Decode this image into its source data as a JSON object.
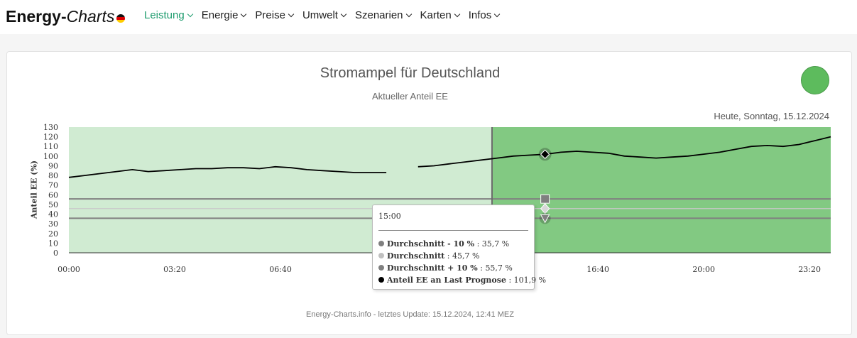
{
  "navbar": {
    "brand_bold": "Energy-",
    "brand_italic": "Charts",
    "menu": [
      {
        "label": "Leistung",
        "active": true
      },
      {
        "label": "Energie",
        "active": false
      },
      {
        "label": "Preise",
        "active": false
      },
      {
        "label": "Umwelt",
        "active": false
      },
      {
        "label": "Szenarien",
        "active": false
      },
      {
        "label": "Karten",
        "active": false
      },
      {
        "label": "Infos",
        "active": false
      }
    ],
    "flag_icon": "german-flag-icon",
    "chevron_icon": "chevron-down-icon"
  },
  "status_light": {
    "color": "#5dbb5d",
    "state": "green"
  },
  "date_label": "Heute, Sonntag, 15.12.2024",
  "footer": "Energy-Charts.info - letztes Update: 15.12.2024, 12:41 MEZ",
  "tooltip": {
    "time": "15:00",
    "rows": [
      {
        "name": "Durchschnitt - 10 %",
        "value": "35,7 %",
        "color": "#808080"
      },
      {
        "name": "Durchschnitt",
        "value": "45,7 %",
        "color": "#c0c0c0"
      },
      {
        "name": "Durchschnitt + 10 %",
        "value": "55,7 %",
        "color": "#808080"
      },
      {
        "name": "Anteil EE an Last Prognose",
        "value": "101,9 %",
        "color": "#000000"
      }
    ]
  },
  "chart_data": {
    "type": "line",
    "title": "Stromampel für Deutschland",
    "subtitle": "Aktueller Anteil EE",
    "ylabel": "Anteil EE (%)",
    "xlabel": "",
    "ylim": [
      0,
      130
    ],
    "xlim_hours": [
      0,
      24
    ],
    "x_ticks": [
      "00:00",
      "03:20",
      "06:40",
      "16:40",
      "20:00",
      "23:20"
    ],
    "x_tick_hours": [
      0,
      3.333,
      6.667,
      16.667,
      20,
      23.333
    ],
    "y_ticks": [
      0,
      10,
      20,
      30,
      40,
      50,
      60,
      70,
      80,
      90,
      100,
      110,
      120,
      130
    ],
    "background_bands": [
      {
        "from_hour": 0,
        "to_hour": 13.33,
        "color": "#d0ebd2"
      },
      {
        "from_hour": 13.33,
        "to_hour": 24,
        "color": "#82c982"
      }
    ],
    "reference_lines": [
      {
        "name": "Durchschnitt - 10 %",
        "value": 35.7,
        "color": "#808080"
      },
      {
        "name": "Durchschnitt",
        "value": 45.7,
        "color": "#c8c8c8"
      },
      {
        "name": "Durchschnitt + 10 %",
        "value": 55.7,
        "color": "#808080"
      }
    ],
    "current_time_hour": 13.33,
    "highlight_hour": 15,
    "series": [
      {
        "name": "Anteil EE an Last Prognose",
        "color": "#000000",
        "x": [
          0,
          0.5,
          1,
          1.5,
          2,
          2.5,
          3,
          3.5,
          4,
          4.5,
          5,
          5.5,
          6,
          6.5,
          7,
          7.5,
          8,
          8.5,
          9,
          9.5,
          10,
          10.5,
          11,
          11.5,
          12,
          12.5,
          13,
          13.5,
          14,
          14.5,
          15,
          15.5,
          16,
          16.5,
          17,
          17.5,
          18,
          18.5,
          19,
          19.5,
          20,
          20.5,
          21,
          21.5,
          22,
          22.5,
          23,
          23.5,
          24
        ],
        "values": [
          78,
          80,
          82,
          84,
          86,
          84,
          85,
          86,
          87,
          87,
          88,
          88,
          87,
          89,
          88,
          86,
          85,
          84,
          83,
          83,
          83,
          null,
          89,
          90,
          92,
          94,
          96,
          98,
          100,
          101,
          101.9,
          104,
          105,
          104,
          103,
          100,
          99,
          98,
          99,
          100,
          102,
          104,
          107,
          110,
          111,
          110,
          112,
          116,
          120
        ]
      }
    ]
  }
}
